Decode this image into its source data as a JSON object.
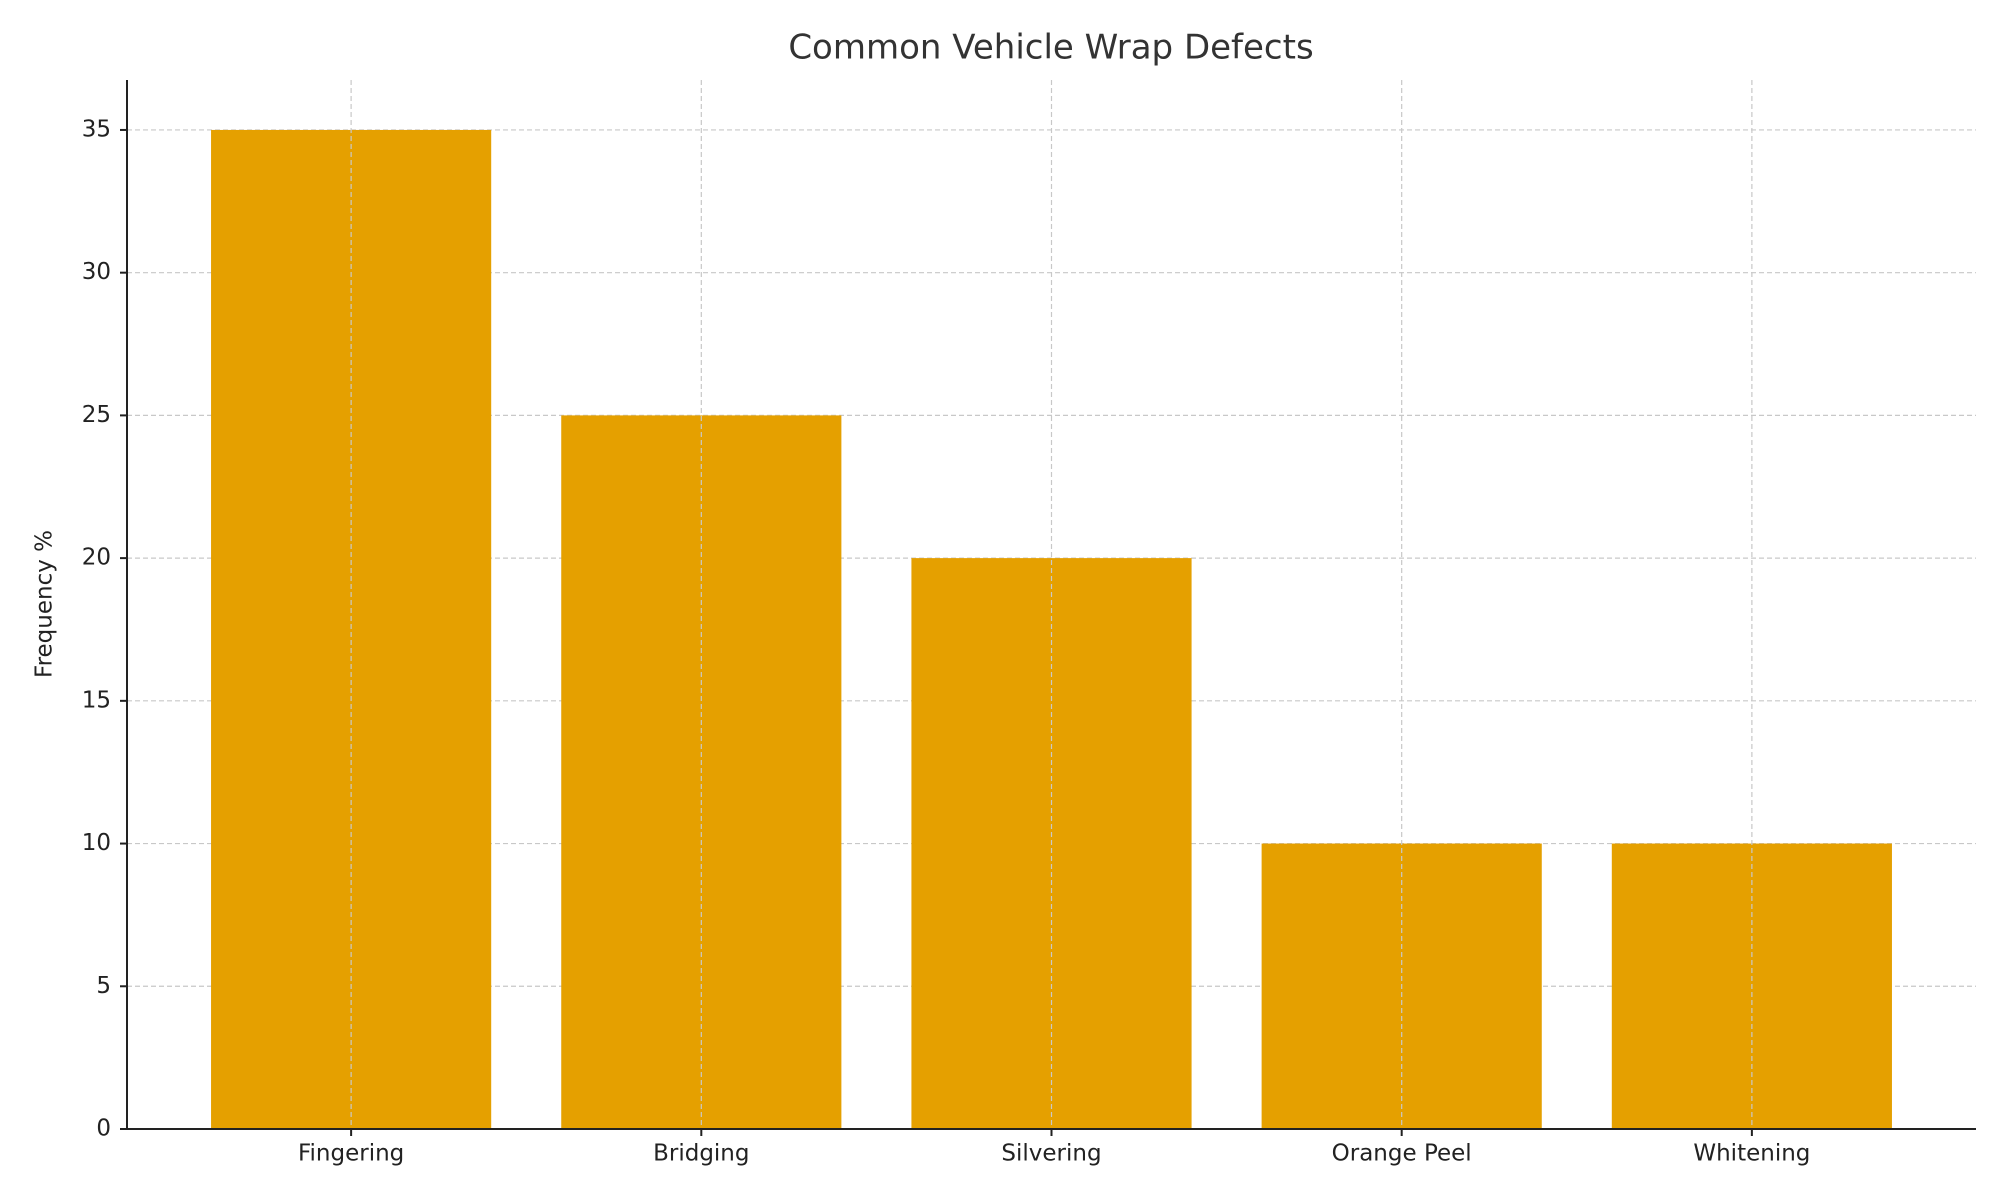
{
  "chart_data": {
    "type": "bar",
    "title": "Common Vehicle Wrap Defects",
    "ylabel": "Frequency %",
    "categories": [
      "Fingering",
      "Bridging",
      "Silvering",
      "Orange Peel",
      "Whitening"
    ],
    "values": [
      35,
      25,
      20,
      10,
      10
    ],
    "color": "#e5a000",
    "ylim": [
      0,
      36.75
    ],
    "yticks": [
      0,
      5,
      10,
      15,
      20,
      25,
      30,
      35
    ],
    "grid": true
  }
}
